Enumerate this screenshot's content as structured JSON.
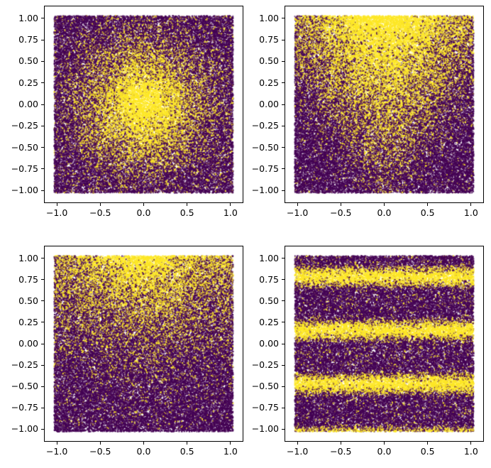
{
  "figure": {
    "background": "#ffffff",
    "kind": "2x2 grid of dense scatter plots, matplotlib style, no titles or axis labels"
  },
  "colors": {
    "point_low": "#440154",
    "point_high": "#FDE725",
    "spine": "#000000",
    "tick_label": "#000000"
  },
  "chart_data": [
    {
      "type": "scatter",
      "position": "top-left",
      "title": "",
      "xlabel": "",
      "ylabel": "",
      "xlim": [
        -1.14,
        1.14
      ],
      "ylim": [
        -1.14,
        1.14
      ],
      "grid": false,
      "legend": null,
      "x_tick_values": [
        -1.0,
        -0.5,
        0.0,
        0.5,
        1.0
      ],
      "x_tick_labels": [
        "−1.0",
        "−0.5",
        "0.0",
        "0.5",
        "1.0"
      ],
      "y_tick_values": [
        1.0,
        0.75,
        0.5,
        0.25,
        0.0,
        -0.25,
        -0.5,
        -0.75,
        -1.0
      ],
      "y_tick_labels": [
        "1.00",
        "0.75",
        "0.50",
        "0.25",
        "0.00",
        "−0.25",
        "−0.50",
        "−0.75",
        "−1.00"
      ],
      "n_points": 50000,
      "point_domain": [
        -1.03,
        1.03
      ],
      "color_low": "#440154",
      "color_high": "#FDE725",
      "seed": 101,
      "pattern": {
        "kind": "radial_gaussian",
        "center_x": 0.0,
        "center_y": 0.0,
        "sigma": 0.46,
        "floor": 0.05
      },
      "description": "Uniform random points on [-1,1]^2; probability of yellow decays as a Gaussian with radial distance from the origin (yellow blob in center, purple edges, speckle noise everywhere)."
    },
    {
      "type": "scatter",
      "position": "top-right",
      "title": "",
      "xlabel": "",
      "ylabel": "",
      "xlim": [
        -1.14,
        1.14
      ],
      "ylim": [
        -1.14,
        1.14
      ],
      "grid": false,
      "legend": null,
      "x_tick_values": [
        -1.0,
        -0.5,
        0.0,
        0.5,
        1.0
      ],
      "x_tick_labels": [
        "−1.0",
        "−0.5",
        "0.0",
        "0.5",
        "1.0"
      ],
      "y_tick_values": [
        1.0,
        0.75,
        0.5,
        0.25,
        0.0,
        -0.25,
        -0.5,
        -0.75,
        -1.0
      ],
      "y_tick_labels": [
        "1.00",
        "0.75",
        "0.50",
        "0.25",
        "0.00",
        "−0.25",
        "−0.50",
        "−0.75",
        "−1.00"
      ],
      "n_points": 50000,
      "point_domain": [
        -1.03,
        1.03
      ],
      "color_low": "#440154",
      "color_high": "#FDE725",
      "seed": 202,
      "pattern": {
        "kind": "cone",
        "sigma0": 0.17,
        "sigma_slope": 0.33,
        "amp0": 0.12,
        "amp_slope": 0.44,
        "floor": 0.03
      },
      "description": "Uniform random points; yellow probability forms an upward-widening funnel: narrow faint yellow streak at bottom center, broadening to a wide bright yellow region across the top."
    },
    {
      "type": "scatter",
      "position": "bottom-left",
      "title": "",
      "xlabel": "",
      "ylabel": "",
      "xlim": [
        -1.14,
        1.14
      ],
      "ylim": [
        -1.14,
        1.14
      ],
      "grid": false,
      "legend": null,
      "x_tick_values": [
        -1.0,
        -0.5,
        0.0,
        0.5,
        1.0
      ],
      "x_tick_labels": [
        "−1.0",
        "−0.5",
        "0.0",
        "0.5",
        "1.0"
      ],
      "y_tick_values": [
        1.0,
        0.75,
        0.5,
        0.25,
        0.0,
        -0.25,
        -0.5,
        -0.75,
        -1.0
      ],
      "y_tick_labels": [
        "1.00",
        "0.75",
        "0.50",
        "0.25",
        "0.00",
        "−0.25",
        "−0.50",
        "−0.75",
        "−1.00"
      ],
      "n_points": 50000,
      "point_domain": [
        -1.03,
        1.03
      ],
      "color_low": "#440154",
      "color_high": "#FDE725",
      "seed": 303,
      "pattern": {
        "kind": "top_gradient",
        "power": 2.1,
        "scale": 0.95,
        "floor": 0.045,
        "center_width": 0.35,
        "center_boost": 0.45,
        "base_amp": 0.55
      },
      "description": "Uniform random points; yellow probability increases toward the top of the plot (strongest near top center), fading to purple with sparse yellow speckle below y≈-0.25."
    },
    {
      "type": "scatter",
      "position": "bottom-right",
      "title": "",
      "xlabel": "",
      "ylabel": "",
      "xlim": [
        -1.14,
        1.14
      ],
      "ylim": [
        -1.14,
        1.14
      ],
      "grid": false,
      "legend": null,
      "x_tick_values": [
        -1.0,
        -0.5,
        0.0,
        0.5,
        1.0
      ],
      "x_tick_labels": [
        "−1.0",
        "−0.5",
        "0.0",
        "0.5",
        "1.0"
      ],
      "y_tick_values": [
        1.0,
        0.75,
        0.5,
        0.25,
        0.0,
        -0.25,
        -0.5,
        -0.75,
        -1.0
      ],
      "y_tick_labels": [
        "1.00",
        "0.75",
        "0.50",
        "0.25",
        "0.00",
        "−0.25",
        "−0.50",
        "−0.75",
        "−1.00"
      ],
      "n_points": 50000,
      "point_domain": [
        -1.03,
        1.03
      ],
      "color_low": "#440154",
      "color_high": "#FDE725",
      "seed": 404,
      "pattern": {
        "kind": "sine_bands",
        "freq": 10,
        "phase": 0,
        "floor": 0.07,
        "scale": 0.9,
        "power": 1.25
      },
      "description": "Uniform random points; yellow probability follows max(0, sin(10·y)) producing horizontal yellow bands centered near y≈0.79, y≈0.16, y≈-0.47 and along the bottom edge, with dark purple bands between."
    }
  ]
}
